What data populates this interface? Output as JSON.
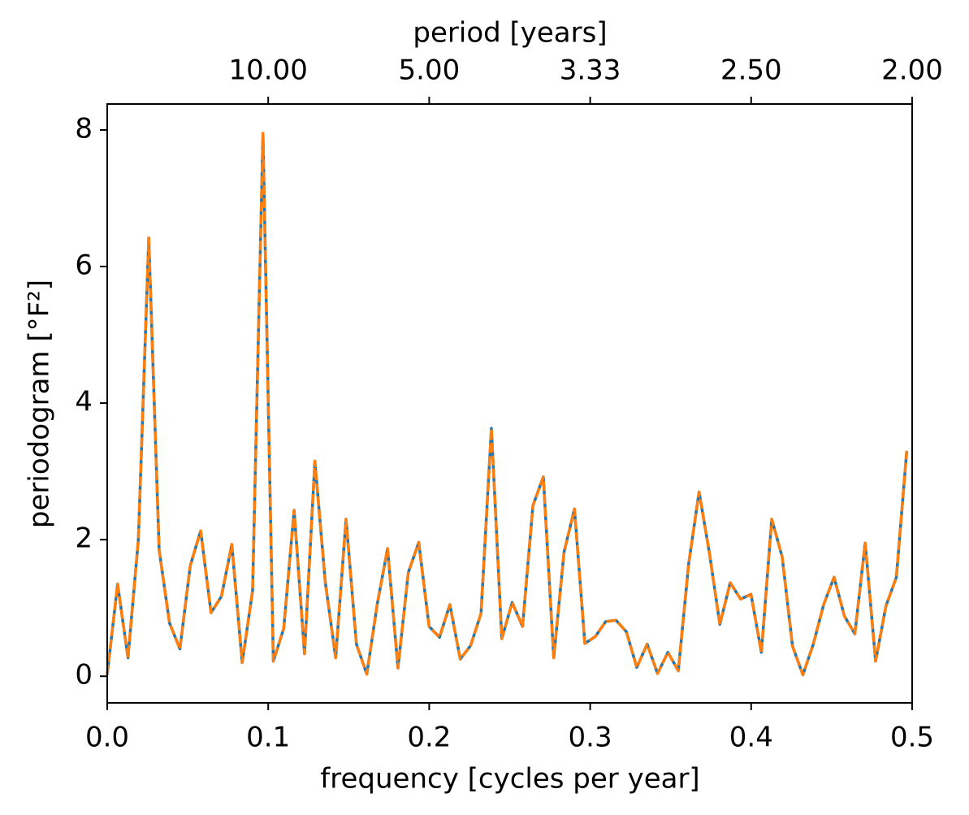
{
  "chart_data": {
    "type": "line",
    "xlabel": "frequency [cycles per year]",
    "ylabel": "periodogram [°F²]",
    "x2label": "period [years]",
    "x": [
      0,
      0.00645,
      0.0129,
      0.01935,
      0.0258,
      0.03225,
      0.0387,
      0.04515,
      0.0516,
      0.05805,
      0.0645,
      0.07095,
      0.0774,
      0.08385,
      0.0903,
      0.09675,
      0.1032,
      0.10965,
      0.1161,
      0.12255,
      0.129,
      0.13545,
      0.1419,
      0.14835,
      0.1548,
      0.16125,
      0.1677,
      0.17415,
      0.1806,
      0.18705,
      0.1935,
      0.19995,
      0.2064,
      0.21285,
      0.2193,
      0.22575,
      0.2322,
      0.23865,
      0.2451,
      0.25155,
      0.258,
      0.26445,
      0.2709,
      0.27735,
      0.2838,
      0.29025,
      0.2967,
      0.30315,
      0.3096,
      0.31605,
      0.3225,
      0.32895,
      0.3354,
      0.34185,
      0.3483,
      0.35475,
      0.3612,
      0.36765,
      0.3741,
      0.38055,
      0.387,
      0.39345,
      0.3999,
      0.40635,
      0.4128,
      0.41925,
      0.4257,
      0.43215,
      0.4386,
      0.44505,
      0.4515,
      0.45795,
      0.4644,
      0.47085,
      0.4773,
      0.48375,
      0.4902,
      0.49665
    ],
    "series": [
      {
        "color": "#1f77b4",
        "linestyle": "solid",
        "values": [
          0.02,
          1.35,
          0.27,
          2.0,
          6.42,
          1.85,
          0.78,
          0.4,
          1.62,
          2.13,
          0.93,
          1.17,
          1.93,
          0.2,
          1.25,
          7.95,
          0.22,
          0.7,
          2.43,
          0.33,
          3.15,
          1.38,
          0.27,
          2.3,
          0.47,
          0.03,
          1.05,
          1.87,
          0.12,
          1.52,
          1.96,
          0.73,
          0.57,
          1.05,
          0.25,
          0.45,
          0.92,
          3.63,
          0.55,
          1.08,
          0.73,
          2.5,
          2.92,
          0.27,
          1.82,
          2.45,
          0.48,
          0.58,
          0.8,
          0.82,
          0.65,
          0.13,
          0.47,
          0.04,
          0.35,
          0.08,
          1.65,
          2.7,
          1.8,
          0.76,
          1.37,
          1.13,
          1.2,
          0.35,
          2.3,
          1.75,
          0.44,
          0.02,
          0.47,
          1.05,
          1.45,
          0.88,
          0.62,
          1.95,
          0.22,
          1.03,
          1.45,
          3.3
        ]
      },
      {
        "color": "#ff7f0e",
        "linestyle": "dashed",
        "values": [
          0.02,
          1.35,
          0.27,
          2.0,
          6.42,
          1.85,
          0.78,
          0.4,
          1.62,
          2.13,
          0.93,
          1.17,
          1.93,
          0.2,
          1.25,
          7.95,
          0.22,
          0.7,
          2.43,
          0.33,
          3.15,
          1.38,
          0.27,
          2.3,
          0.47,
          0.03,
          1.05,
          1.87,
          0.12,
          1.52,
          1.96,
          0.73,
          0.57,
          1.05,
          0.25,
          0.45,
          0.92,
          3.63,
          0.55,
          1.08,
          0.73,
          2.5,
          2.92,
          0.27,
          1.82,
          2.45,
          0.48,
          0.58,
          0.8,
          0.82,
          0.65,
          0.13,
          0.47,
          0.04,
          0.35,
          0.08,
          1.65,
          2.7,
          1.8,
          0.76,
          1.37,
          1.13,
          1.2,
          0.35,
          2.3,
          1.75,
          0.44,
          0.02,
          0.47,
          1.05,
          1.45,
          0.88,
          0.62,
          1.95,
          0.22,
          1.03,
          1.45,
          3.3
        ]
      }
    ],
    "xlim": [
      0,
      0.5
    ],
    "xticks": [
      {
        "value": 0,
        "label": "0.0"
      },
      0.1,
      0.2,
      0.3,
      0.4,
      0.5
    ],
    "x2ticks": [
      {
        "value": 0.1,
        "label": "10.00"
      },
      {
        "value": 0.2,
        "label": "5.00"
      },
      {
        "value": 0.3,
        "label": "3.33"
      },
      {
        "value": 0.4,
        "label": "2.50"
      },
      {
        "value": 0.5,
        "label": "2.00"
      }
    ],
    "ylim": [
      -0.39,
      8.38
    ],
    "yticks": [
      0,
      2,
      4,
      6,
      8
    ],
    "grid": false
  }
}
